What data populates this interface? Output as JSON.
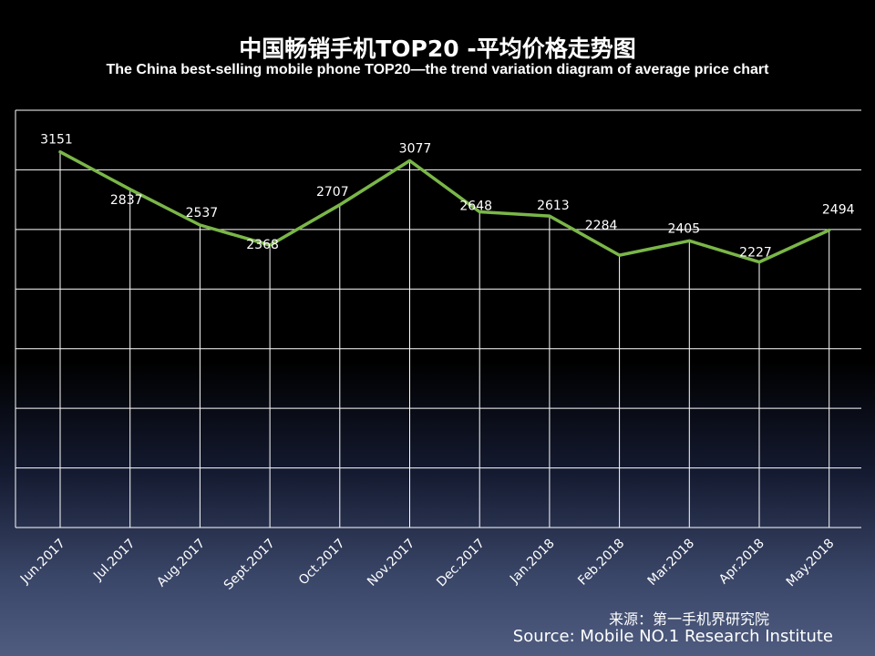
{
  "header": {
    "title": "中国畅销手机TOP20 -平均价格走势图",
    "subtitle": "The China best-selling mobile phone TOP20—the trend variation diagram of average price chart"
  },
  "chart_data": {
    "type": "line",
    "categories": [
      "Jun.2017",
      "Jul.2017",
      "Aug.2017",
      "Sept.2017",
      "Oct.2017",
      "Nov.2017",
      "Dec.2017",
      "Jan.2018",
      "Feb.2018",
      "Mar.2018",
      "Apr.2018",
      "May.2018"
    ],
    "series": [
      {
        "values": [
          3151,
          2837,
          2537,
          2368,
          2707,
          3077,
          2648,
          2613,
          2284,
          2405,
          2227,
          2494
        ],
        "color": "#7ab648"
      }
    ],
    "ylim": [
      0,
      3500
    ],
    "grid": true,
    "line_color": "#7ab648",
    "grid_color": "#ffffff"
  },
  "footer": {
    "source_cn": "来源：第一手机界研究院",
    "source_en": "Source: Mobile NO.1 Research Institute"
  }
}
